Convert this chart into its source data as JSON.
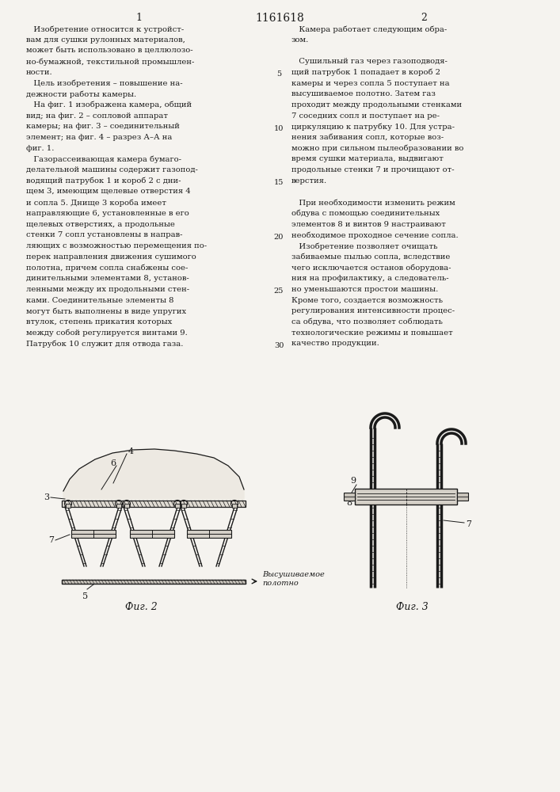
{
  "page_title": "1161618",
  "page_left": "1",
  "page_right": "2",
  "bg_color": "#f5f3ef",
  "text_color": "#1a1a1a",
  "fig2_caption": "Фиг. 2",
  "fig3_caption": "Фиг. 3",
  "left_column_text": [
    "   Изобретение относится к устройст-",
    "вам для сушки рулонных материалов,",
    "может быть использовано в целлюлозо-",
    "но-бумажной, текстильной промышлен-",
    "ности.",
    "   Цель изобретения – повышение на-",
    "дежности работы камеры.",
    "   На фиг. 1 изображена камера, общий",
    "вид; на фиг. 2 – сопловой аппарат",
    "камеры; на фиг. 3 – соединительный",
    "элемент; на фиг. 4 – разрез А–А на",
    "фиг. 1.",
    "   Газорассеивающая камера бумаго-",
    "делательной машины содержит газопод-",
    "водящий патрубок 1 и короб 2 с дни-",
    "щем 3, имеющим щелевые отверстия 4",
    "и сопла 5. Днище 3 короба имеет",
    "направляющие 6, установленные в его",
    "щелевых отверстиях, а продольные",
    "стенки 7 сопл установлены в направ-",
    "ляющих с возможностью перемещения по-",
    "перек направления движения сушимого",
    "полотна, причем сопла снабжены сое-",
    "динительными элементами 8, установ-",
    "ленными между их продольными стен-",
    "ками. Соединительные элементы 8",
    "могут быть выполнены в виде упругих",
    "втулок, степень прикатия которых",
    "между собой регулируется винтами 9.",
    "Патрубок 10 служит для отвода газа."
  ],
  "right_column_text": [
    "   Камера работает следующим обра-",
    "зом.",
    "",
    "   Сушильный газ через газоподводя-",
    "щий патрубок 1 попадает в короб 2",
    "камеры и через сопла 5 поступает на",
    "высушиваемое полотно. Затем газ",
    "проходит между продольными стенками",
    "7 соседних сопл и поступает на ре-",
    "циркуляцию к патрубку 10. Для устра-",
    "нения забивания сопл, которые воз-",
    "можно при сильном пылеобразовании во",
    "время сушки материала, выдвигают",
    "продольные стенки 7 и прочищают от-",
    "верстия.",
    "",
    "   При необходимости изменить режим",
    "обдува с помощью соединительных",
    "элементов 8 и винтов 9 настраивают",
    "необходимое проходное сечение сопла.",
    "   Изобретение позволяет очищать",
    "забиваемые пылью сопла, вследствие",
    "чего исключается останов оборудова-",
    "ния на профилактику, а следователь-",
    "но уменьшаются простои машины.",
    "Кроме того, создается возможность",
    "регулирования интенсивности процес-",
    "са обдува, что позволяет соблюдать",
    "технологические режимы и повышает",
    "качество продукции."
  ],
  "line_numbers_y": [
    5,
    10,
    15,
    20,
    25,
    30
  ]
}
